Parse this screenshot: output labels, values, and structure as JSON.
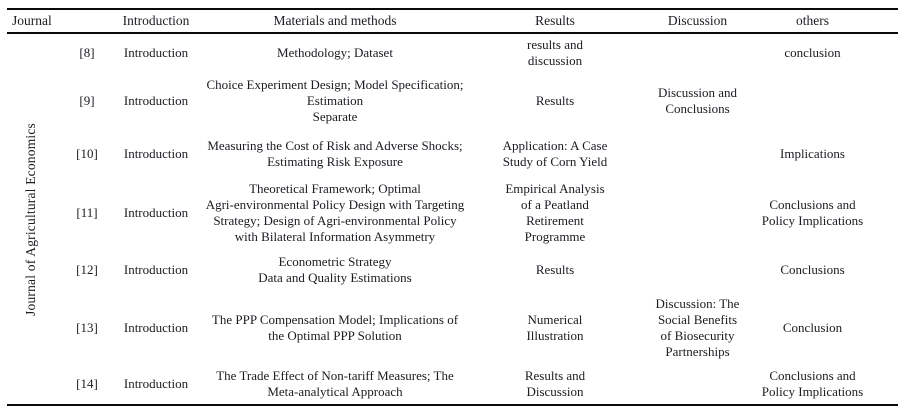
{
  "table": {
    "journal_group_label": "Journal of Agricultural Economics",
    "headers": {
      "journal": "Journal",
      "introduction": "Introduction",
      "methods": "Materials and methods",
      "results": "Results",
      "discussion": "Discussion",
      "others": "others"
    },
    "rows": [
      {
        "ref": "[8]",
        "introduction": "Introduction",
        "methods": "Methodology; Dataset",
        "results": "results and\ndiscussion",
        "discussion": "",
        "others": "conclusion"
      },
      {
        "ref": "[9]",
        "introduction": "Introduction",
        "methods": "Choice Experiment Design; Model Specification;\nEstimation\nSeparate",
        "results": "Results",
        "discussion": "Discussion and\nConclusions",
        "others": ""
      },
      {
        "ref": "[10]",
        "introduction": "Introduction",
        "methods": "Measuring the Cost of Risk and Adverse Shocks;\nEstimating Risk Exposure",
        "results": "Application: A Case\nStudy of Corn Yield",
        "discussion": "",
        "others": "Implications"
      },
      {
        "ref": "[11]",
        "introduction": "Introduction",
        "methods": "Theoretical Framework; Optimal\nAgri-environmental Policy Design with Targeting\nStrategy; Design of Agri-environmental Policy\nwith Bilateral Information Asymmetry",
        "results": "Empirical Analysis\nof a Peatland\nRetirement\nProgramme",
        "discussion": "",
        "others": "Conclusions and\nPolicy Implications"
      },
      {
        "ref": "[12]",
        "introduction": "Introduction",
        "methods": "Econometric Strategy\nData and Quality Estimations",
        "results": "Results",
        "discussion": "",
        "others": "Conclusions"
      },
      {
        "ref": "[13]",
        "introduction": "Introduction",
        "methods": "The PPP Compensation Model; Implications of\nthe Optimal PPP Solution",
        "results": "Numerical\nIllustration",
        "discussion": "Discussion: The\nSocial Benefits\nof Biosecurity\nPartnerships",
        "others": "Conclusion"
      },
      {
        "ref": "[14]",
        "introduction": "Introduction",
        "methods": "The Trade Effect of Non-tariff Measures; The\nMeta-analytical Approach",
        "results": "Results and\nDiscussion",
        "discussion": "",
        "others": "Conclusions and\nPolicy Implications"
      }
    ]
  }
}
